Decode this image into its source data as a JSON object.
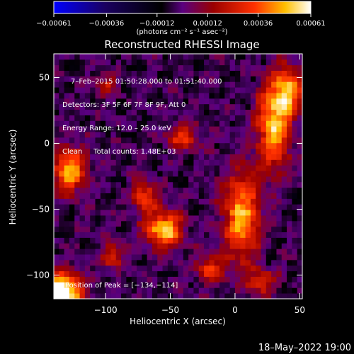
{
  "chart_data": {
    "type": "heatmap",
    "title": "Reconstructed RHESSI Image",
    "xlabel": "Heliocentric X (arcsec)",
    "ylabel": "Heliocentric Y (arcsec)",
    "xlim": [
      -140,
      52
    ],
    "ylim": [
      -118,
      68
    ],
    "x_ticks": [
      -100,
      -50,
      0,
      50
    ],
    "x_tick_labels": [
      "−100",
      "−50",
      "0",
      "50"
    ],
    "y_ticks": [
      -100,
      -50,
      0,
      50
    ],
    "y_tick_labels": [
      "−100",
      "−50",
      "0",
      "50"
    ],
    "colorbar": {
      "min": -0.00061,
      "max": 0.00061,
      "ticks": [
        -0.00061,
        -0.00036,
        -0.00012,
        0.00012,
        0.00036,
        0.00061
      ],
      "tick_labels": [
        "−0.00061",
        "−0.00036",
        "−0.00012",
        "0.00012",
        "0.00036",
        "0.00061"
      ],
      "unit_label": "(photons cm⁻² s⁻¹ asec⁻²)",
      "colormap": [
        "#0000ff",
        "#1a0060",
        "#000000",
        "#5a0080",
        "#9a0000",
        "#ff3000",
        "#ffc000",
        "#ffffff"
      ]
    },
    "annotations": [
      "7–Feb–2015 01:50:28.000 to 01:51:40.000",
      "Detectors: 3F 5F 6F 7F 8F 9F, Att 0",
      "Energy Range: 12.0 – 25.0 keV",
      "Clean     Total counts: 1.48E+03"
    ],
    "peak_label": "Position of Peak = [−134,−114]",
    "peak": [
      -134,
      -114
    ],
    "grid_size": [
      48,
      44
    ],
    "sources": [
      {
        "x": -134,
        "y": -114,
        "sx": 11,
        "sy": 11,
        "amp": 1.05
      },
      {
        "x": -128,
        "y": -20,
        "sx": 9,
        "sy": 12,
        "amp": 0.7
      },
      {
        "x": -55,
        "y": -65,
        "sx": 10,
        "sy": 9,
        "amp": 0.8
      },
      {
        "x": -70,
        "y": -40,
        "sx": 7,
        "sy": 8,
        "amp": 0.55
      },
      {
        "x": 5,
        "y": -55,
        "sx": 10,
        "sy": 24,
        "amp": 0.7
      },
      {
        "x": 30,
        "y": 15,
        "sx": 9,
        "sy": 24,
        "amp": 0.75
      },
      {
        "x": 42,
        "y": 40,
        "sx": 7,
        "sy": 12,
        "amp": 0.6
      },
      {
        "x": -20,
        "y": -95,
        "sx": 7,
        "sy": 7,
        "amp": 0.5
      },
      {
        "x": -95,
        "y": -85,
        "sx": 6,
        "sy": 7,
        "amp": 0.45
      },
      {
        "x": -40,
        "y": 5,
        "sx": 9,
        "sy": 7,
        "amp": 0.45
      },
      {
        "x": -100,
        "y": 45,
        "sx": 6,
        "sy": 6,
        "amp": 0.35
      },
      {
        "x": 20,
        "y": -105,
        "sx": 8,
        "sy": 6,
        "amp": 0.45
      }
    ]
  },
  "footer": {
    "timestamp": "18–May–2022 19:00"
  }
}
